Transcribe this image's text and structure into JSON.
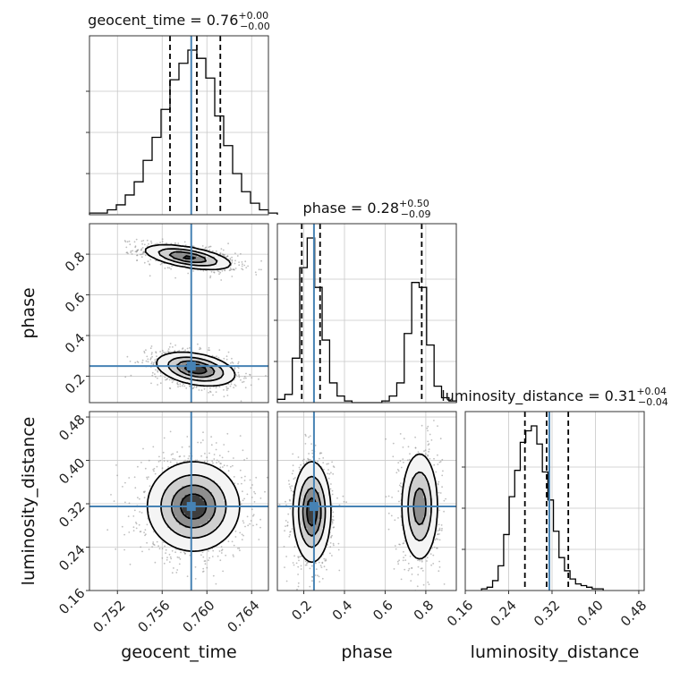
{
  "chart_data": {
    "type": "corner",
    "params": [
      {
        "key": "geocent_time",
        "label": "geocent_time",
        "range": [
          0.7495,
          0.7655
        ],
        "ticks": [
          0.752,
          0.756,
          0.76,
          0.764
        ],
        "tick_labels": [
          "0.752",
          "0.756",
          "0.760",
          "0.764"
        ],
        "truth": 0.7586,
        "quantiles": [
          0.7567,
          0.7591,
          0.7612
        ],
        "title": {
          "name": "geocent_time",
          "value": "0.76",
          "plus": "+0.00",
          "minus": "−0.00"
        },
        "hist": {
          "edges_start": 0.7495,
          "bin_width": 0.0008,
          "counts": [
            0.01,
            0.01,
            0.03,
            0.06,
            0.12,
            0.2,
            0.33,
            0.47,
            0.64,
            0.82,
            0.92,
            1.0,
            0.95,
            0.83,
            0.6,
            0.42,
            0.25,
            0.14,
            0.07,
            0.03,
            0.01
          ]
        }
      },
      {
        "key": "phase",
        "label": "phase",
        "range": [
          0.07,
          0.95
        ],
        "ticks": [
          0.2,
          0.4,
          0.6,
          0.8
        ],
        "tick_labels": [
          "0.2",
          "0.4",
          "0.6",
          "0.8"
        ],
        "truth": 0.25,
        "quantiles": [
          0.19,
          0.28,
          0.78
        ],
        "title": {
          "name": "phase",
          "value": "0.28",
          "plus": "+0.50",
          "minus": "−0.09"
        },
        "hist": {
          "edges_start": 0.07,
          "bin_width": 0.0367,
          "counts": [
            0.02,
            0.05,
            0.27,
            0.82,
            1.0,
            0.7,
            0.38,
            0.12,
            0.04,
            0.01,
            0.0,
            0.0,
            0.0,
            0.0,
            0.01,
            0.04,
            0.12,
            0.42,
            0.73,
            0.7,
            0.35,
            0.1,
            0.03,
            0.01
          ]
        }
      },
      {
        "key": "luminosity_distance",
        "label": "luminosity_distance",
        "range": [
          0.16,
          0.49
        ],
        "ticks": [
          0.16,
          0.24,
          0.32,
          0.4,
          0.48
        ],
        "tick_labels": [
          "0.16",
          "0.24",
          "0.32",
          "0.40",
          "0.48"
        ],
        "truth": 0.315,
        "quantiles": [
          0.27,
          0.31,
          0.35
        ],
        "title": {
          "name": "luminosity_distance",
          "value": "0.31",
          "plus": "+0.04",
          "minus": "−0.04"
        },
        "hist": {
          "edges_start": 0.19,
          "bin_width": 0.0102,
          "counts": [
            0.01,
            0.02,
            0.06,
            0.15,
            0.34,
            0.57,
            0.73,
            0.9,
            0.97,
            1.0,
            0.89,
            0.72,
            0.55,
            0.36,
            0.2,
            0.12,
            0.07,
            0.04,
            0.03,
            0.02,
            0.01,
            0.01
          ]
        }
      }
    ],
    "pairs": [
      {
        "x": "geocent_time",
        "y": "phase",
        "modes": [
          {
            "cx": 0.7583,
            "cy": 0.785,
            "sx": 0.0019,
            "sy": 0.03,
            "rho": -0.55,
            "n": 900
          },
          {
            "cx": 0.759,
            "cy": 0.235,
            "sx": 0.0017,
            "sy": 0.04,
            "rho": -0.35,
            "n": 1000
          }
        ]
      },
      {
        "x": "geocent_time",
        "y": "luminosity_distance",
        "modes": [
          {
            "cx": 0.7588,
            "cy": 0.315,
            "sx": 0.002,
            "sy": 0.04,
            "rho": 0.0,
            "n": 1400
          }
        ]
      },
      {
        "x": "phase",
        "y": "luminosity_distance",
        "modes": [
          {
            "cx": 0.24,
            "cy": 0.305,
            "sx": 0.045,
            "sy": 0.045,
            "rho": 0.0,
            "n": 900
          },
          {
            "cx": 0.77,
            "cy": 0.315,
            "sx": 0.045,
            "sy": 0.05,
            "rho": 0.0,
            "n": 700
          }
        ]
      }
    ],
    "truth_color": "#4682b4",
    "hist_color": "#000000",
    "quantile_style": "dashed",
    "grid": true
  }
}
